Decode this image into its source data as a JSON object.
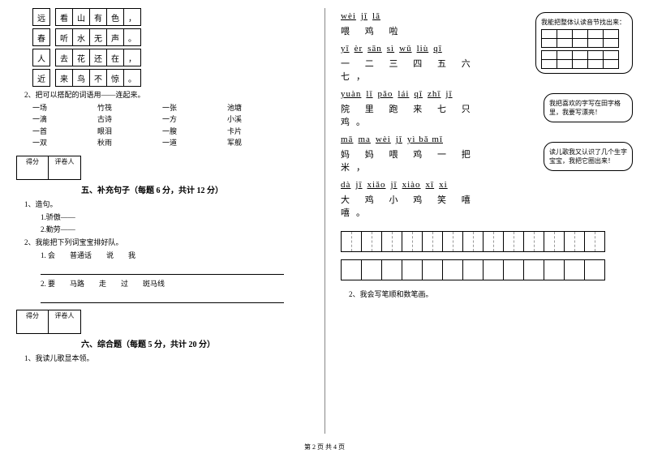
{
  "left": {
    "grid_rows": [
      {
        "left": "远",
        "chars": [
          "看",
          "山",
          "有",
          "色",
          "，"
        ]
      },
      {
        "left": "春",
        "chars": [
          "听",
          "水",
          "无",
          "声",
          "。"
        ]
      },
      {
        "left": "人",
        "chars": [
          "去",
          "花",
          "还",
          "在",
          "，"
        ]
      },
      {
        "left": "近",
        "chars": [
          "来",
          "鸟",
          "不",
          "惊",
          "。"
        ]
      }
    ],
    "match_title": "2、把可以搭配的词语用——连起来。",
    "match_rows": [
      [
        "一场",
        "竹筏",
        "一张",
        "池塘"
      ],
      [
        "一滴",
        "古诗",
        "一方",
        "小溪"
      ],
      [
        "一首",
        "眼泪",
        "一膄",
        "卡片"
      ],
      [
        "一双",
        "秋雨",
        "一道",
        "军舰"
      ]
    ],
    "score_labels": [
      "得分",
      "评卷人"
    ],
    "section5": "五、补充句子（每题 6 分，共计 12 分）",
    "item1": "1、造句。",
    "sub1a": "1.骄傲——",
    "sub1b": "2.勤劳——",
    "item2": "2、我能把下列词宝宝排好队。",
    "sub2a_words": [
      "1. 会",
      "普通话",
      "说",
      "我"
    ],
    "sub2b_words": [
      "2. 要",
      "马路",
      "走",
      "过",
      "斑马线"
    ],
    "section6": "六、综合题（每题 5 分，共计 20 分）",
    "item6_1": "1、我读儿歌显本领。"
  },
  "right": {
    "lines": [
      {
        "py": [
          "wèi",
          "jī",
          "lā"
        ],
        "hz": "喂 鸡 啦"
      },
      {
        "py": [
          "yī",
          "èr",
          "sān",
          "sì",
          "wǔ",
          "liù",
          "qī"
        ],
        "hz": "一 二 三 四 五 六 七，"
      },
      {
        "py": [
          "yuàn",
          "lǐ",
          "pǎo",
          "lái",
          "qī",
          "zhī",
          "jī"
        ],
        "hz": "院 里 跑 来 七 只 鸡。"
      },
      {
        "py": [
          "mā",
          "ma",
          "wèi",
          "jī",
          "yì bǎ mǐ"
        ],
        "hz": "妈 妈 喂 鸡 一 把 米，"
      },
      {
        "py": [
          "dà",
          "jī",
          "xiǎo",
          "jī",
          "xiào",
          "xī",
          "xi"
        ],
        "hz": "大 鸡 小 鸡 笑 嘻 嘻。"
      }
    ],
    "bubble1": "我能把整体认读音节找出来：",
    "bubble2": "我把喜欢的字写在田字格里，我要写漂亮！",
    "bubble3": "读儿歌我又认识了几个生字宝宝，我把它圈出来！",
    "item2": "2、我会写笔顺和数笔画。",
    "tian_count": 13
  },
  "footer": "第 2 页 共 4 页"
}
